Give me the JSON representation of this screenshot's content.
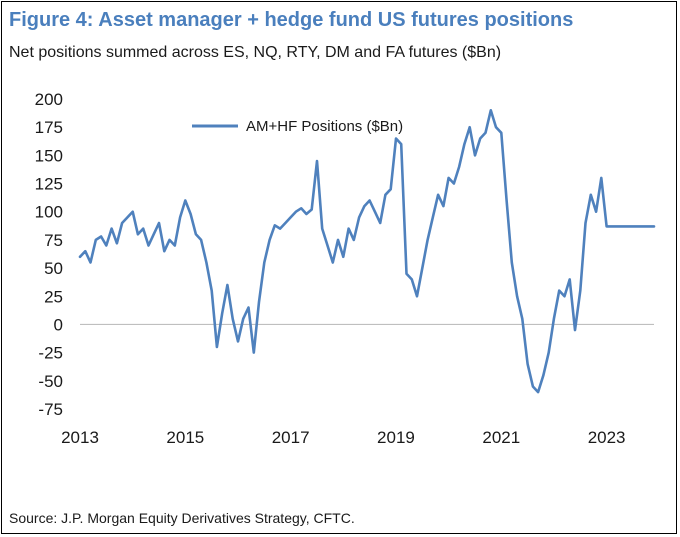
{
  "colors": {
    "title": "#4a7fbd",
    "series": "#4f81bd",
    "axis": "#bfbfbf"
  },
  "chart_data": {
    "type": "line",
    "title": "Figure 4: Asset manager + hedge fund US futures positions",
    "subtitle": "Net positions summed across ES, NQ, RTY, DM and FA futures ($Bn)",
    "source": "Source: J.P. Morgan Equity Derivatives Strategy, CFTC.",
    "xlabel": "",
    "ylabel": "",
    "ylim": [
      -75,
      200
    ],
    "xlim": [
      2013.0,
      2023.9
    ],
    "x_ticks": [
      "2013",
      "2015",
      "2017",
      "2019",
      "2021",
      "2023"
    ],
    "y_ticks": [
      "200",
      "175",
      "150",
      "125",
      "100",
      "75",
      "50",
      "25",
      "0",
      "-25",
      "-50",
      "-75"
    ],
    "grid": false,
    "legend": "top-left",
    "series": [
      {
        "name": "AM+HF Positions ($Bn)",
        "x": [
          2013.0,
          2013.1,
          2013.2,
          2013.3,
          2013.4,
          2013.5,
          2013.6,
          2013.7,
          2013.8,
          2013.9,
          2014.0,
          2014.1,
          2014.2,
          2014.3,
          2014.4,
          2014.5,
          2014.6,
          2014.7,
          2014.8,
          2014.9,
          2015.0,
          2015.1,
          2015.2,
          2015.3,
          2015.4,
          2015.5,
          2015.6,
          2015.7,
          2015.8,
          2015.9,
          2016.0,
          2016.1,
          2016.2,
          2016.3,
          2016.4,
          2016.5,
          2016.6,
          2016.7,
          2016.8,
          2016.9,
          2017.0,
          2017.1,
          2017.2,
          2017.3,
          2017.4,
          2017.5,
          2017.6,
          2017.7,
          2017.8,
          2017.9,
          2018.0,
          2018.1,
          2018.2,
          2018.3,
          2018.4,
          2018.5,
          2018.6,
          2018.7,
          2018.8,
          2018.9,
          2019.0,
          2019.1,
          2019.2,
          2019.3,
          2019.4,
          2019.5,
          2019.6,
          2019.7,
          2019.8,
          2019.9,
          2020.0,
          2020.1,
          2020.2,
          2020.3,
          2020.4,
          2020.5,
          2020.6,
          2020.7,
          2020.8,
          2020.9,
          2021.0,
          2021.1,
          2021.2,
          2021.3,
          2021.4,
          2021.5,
          2021.6,
          2021.7,
          2021.8,
          2021.9,
          2022.0,
          2022.1,
          2022.2,
          2022.3,
          2022.4,
          2022.5,
          2022.6,
          2022.7,
          2022.8,
          2022.9,
          2023.0,
          2023.1,
          2023.2,
          2023.3,
          2023.4,
          2023.5,
          2023.6,
          2023.7,
          2023.8,
          2023.9
        ],
        "values": [
          60,
          65,
          55,
          75,
          78,
          70,
          85,
          72,
          90,
          95,
          100,
          80,
          85,
          70,
          80,
          90,
          65,
          75,
          70,
          95,
          110,
          98,
          80,
          75,
          55,
          30,
          -20,
          10,
          35,
          5,
          -15,
          5,
          15,
          -25,
          20,
          55,
          75,
          88,
          85,
          90,
          95,
          100,
          103,
          98,
          102,
          145,
          85,
          70,
          55,
          75,
          60,
          85,
          75,
          95,
          105,
          110,
          100,
          90,
          115,
          120,
          165,
          160,
          45,
          40,
          25,
          50,
          75,
          95,
          115,
          105,
          130,
          125,
          140,
          160,
          175,
          150,
          165,
          170,
          190,
          175,
          170,
          110,
          55,
          25,
          5,
          -35,
          -55,
          -60,
          -45,
          -25,
          5,
          30,
          25,
          40,
          -5,
          30,
          90,
          115,
          100,
          130,
          87,
          87,
          87,
          87,
          87,
          87,
          87,
          87,
          87,
          87
        ]
      }
    ]
  }
}
